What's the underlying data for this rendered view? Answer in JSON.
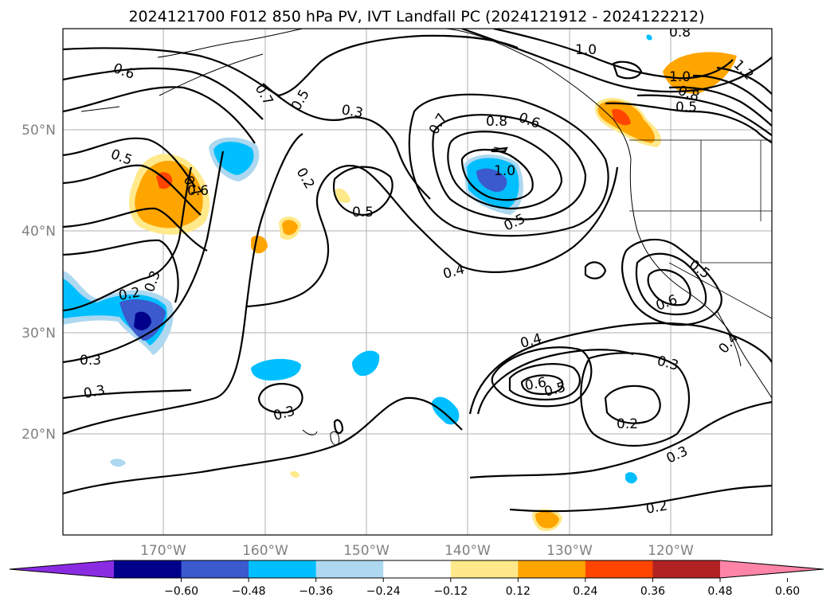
{
  "title": "2024121700 F012 850 hPa PV, IVT Landfall PC (2024121912 - 2024122212)",
  "map": {
    "lon_ticks": [
      "170°W",
      "160°W",
      "150°W",
      "140°W",
      "130°W",
      "120°W"
    ],
    "lat_ticks": [
      "50°N",
      "40°N",
      "30°N",
      "20°N"
    ]
  },
  "colorbar": {
    "colors": [
      "#8a2be2",
      "#00008b",
      "#3a5acd",
      "#00bfff",
      "#add8f0",
      "#ffffff",
      "#ffe98a",
      "#ffa500",
      "#ff4500",
      "#b22222",
      "#ff85a8"
    ],
    "tick_labels": [
      "−0.60",
      "−0.48",
      "−0.36",
      "−0.24",
      "−0.12",
      "0.12",
      "0.24",
      "0.36",
      "0.48",
      "0.60"
    ]
  },
  "contour_labels": [
    "0.6",
    "0.7",
    "0.5",
    "0.3",
    "0.7",
    "0.8",
    "0.6",
    "1.0",
    "0.8",
    "1.0",
    "1.2",
    "0.8",
    "0.5",
    "0.5",
    "0.7",
    "0.6",
    "0.2",
    "1.0",
    "0.5",
    "0.5",
    "0.4",
    "0.2",
    "0.3",
    "0.3",
    "0.3",
    "0.3",
    "0.4",
    "0.6",
    "0.5",
    "0.3",
    "0.2",
    "0.3",
    "0.2",
    "0.5",
    "0.6",
    "0.4"
  ]
}
